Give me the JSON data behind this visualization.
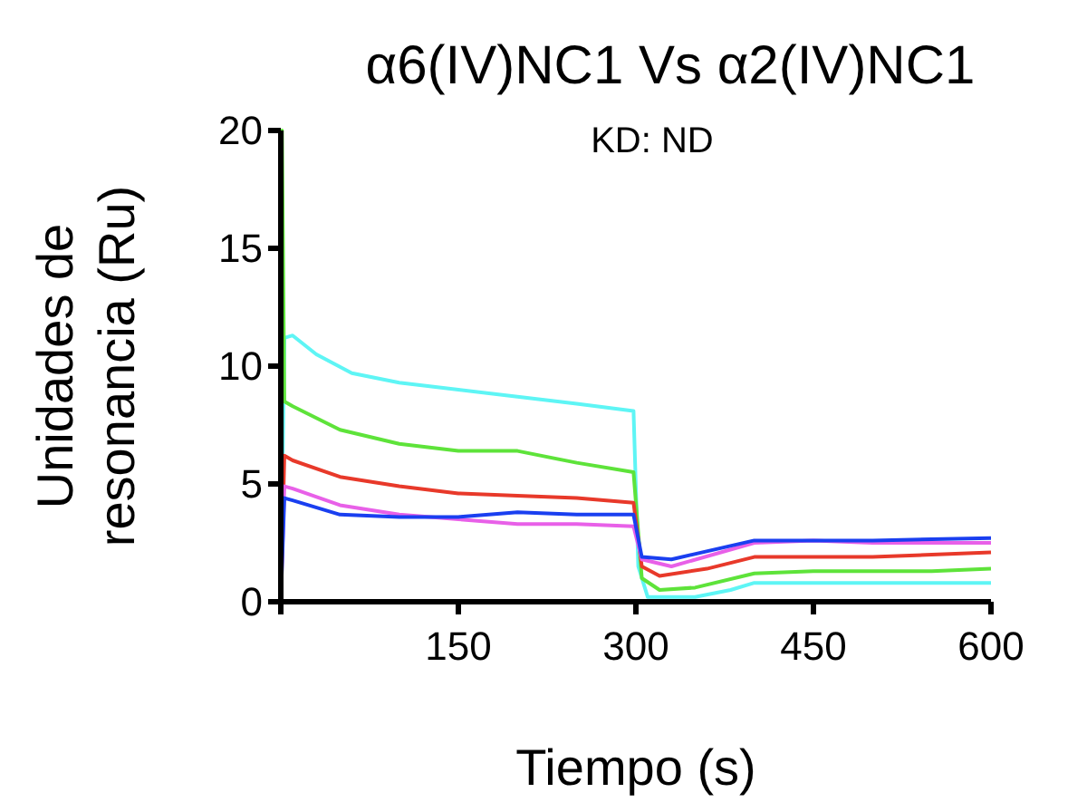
{
  "chart_data": {
    "type": "line",
    "title": "α6(IV)NC1 Vs α2(IV)NC1",
    "subtitle": "KD: ND",
    "xlabel": "Tiempo (s)",
    "ylabel": "Unidades de\nresonancia (Ru)",
    "xlim": [
      0,
      600
    ],
    "ylim": [
      0,
      20
    ],
    "xticks": [
      {
        "value": 0,
        "label": null
      },
      150,
      300,
      450,
      600
    ],
    "yticks": [
      0,
      5,
      10,
      15,
      20
    ],
    "grid": false,
    "line_style": "solid",
    "series": [
      {
        "color": "#5ef5f5",
        "x": [
          0,
          3,
          10,
          30,
          60,
          100,
          150,
          200,
          250,
          298,
          302,
          310,
          350,
          380,
          400,
          450,
          500,
          550,
          600
        ],
        "values": [
          0,
          11.2,
          11.3,
          10.5,
          9.7,
          9.3,
          9.0,
          8.7,
          8.4,
          8.1,
          1.5,
          0.2,
          0.2,
          0.5,
          0.8,
          0.8,
          0.8,
          0.8,
          0.8
        ]
      },
      {
        "color": "#5ee33a",
        "x": [
          0,
          1,
          3,
          10,
          50,
          100,
          150,
          200,
          250,
          298,
          305,
          320,
          350,
          400,
          450,
          500,
          550,
          600
        ],
        "values": [
          0,
          20,
          8.5,
          8.3,
          7.3,
          6.7,
          6.4,
          6.4,
          5.9,
          5.5,
          1.0,
          0.5,
          0.6,
          1.2,
          1.3,
          1.3,
          1.3,
          1.4
        ]
      },
      {
        "color": "#e8392a",
        "x": [
          0,
          3,
          10,
          50,
          100,
          150,
          200,
          250,
          298,
          305,
          320,
          360,
          400,
          450,
          500,
          550,
          600
        ],
        "values": [
          0,
          6.2,
          6.0,
          5.3,
          4.9,
          4.6,
          4.5,
          4.4,
          4.2,
          1.5,
          1.1,
          1.4,
          1.9,
          1.9,
          1.9,
          2.0,
          2.1
        ]
      },
      {
        "color": "#e860e8",
        "x": [
          0,
          3,
          10,
          50,
          100,
          150,
          200,
          250,
          298,
          305,
          330,
          400,
          450,
          500,
          600
        ],
        "values": [
          0,
          4.9,
          4.8,
          4.1,
          3.7,
          3.5,
          3.3,
          3.3,
          3.2,
          1.8,
          1.5,
          2.5,
          2.6,
          2.5,
          2.5
        ]
      },
      {
        "color": "#1a3ff0",
        "x": [
          0,
          3,
          10,
          50,
          100,
          150,
          200,
          250,
          298,
          305,
          330,
          400,
          450,
          500,
          600
        ],
        "values": [
          0,
          4.4,
          4.3,
          3.7,
          3.6,
          3.6,
          3.8,
          3.7,
          3.7,
          1.9,
          1.8,
          2.6,
          2.6,
          2.6,
          2.7
        ]
      }
    ]
  }
}
